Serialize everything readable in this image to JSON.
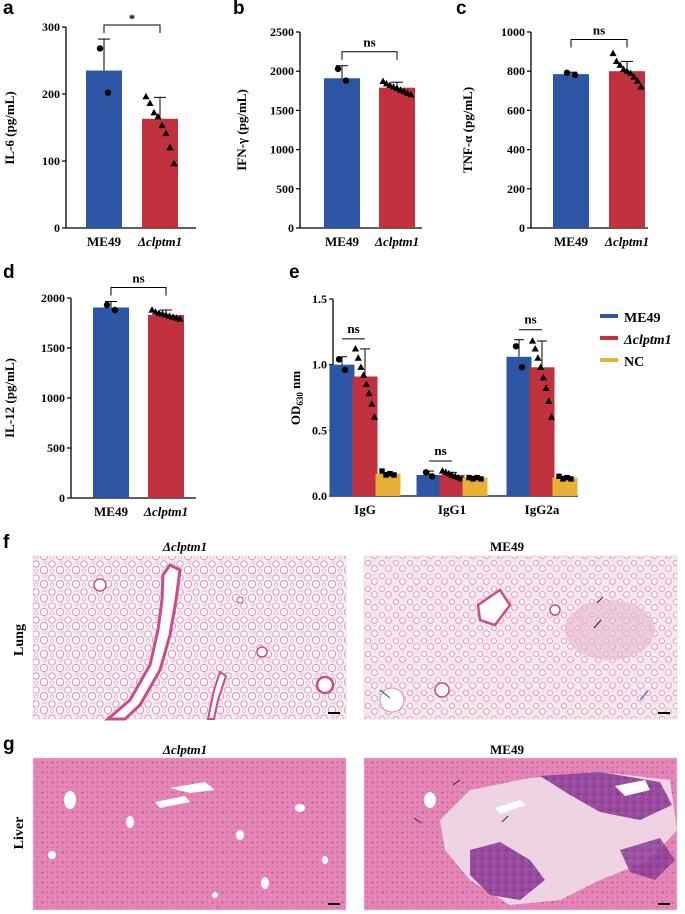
{
  "colors": {
    "me49": "#2c56a4",
    "clptm1": "#c0313d",
    "nc": "#eab035"
  },
  "chart_data": [
    {
      "id": "a",
      "type": "bar",
      "panel": "a",
      "ylabel": "IL-6 (pg/mL)",
      "ylim": [
        0,
        300
      ],
      "yticks": [
        0,
        100,
        200,
        300
      ],
      "categories": [
        "ME49",
        "Δclptm1"
      ],
      "values": [
        235,
        163
      ],
      "errors": [
        47,
        32
      ],
      "points": [
        [
          268,
          202
        ],
        [
          196,
          186,
          172,
          166,
          153,
          141,
          120,
          96
        ]
      ],
      "sig": "*"
    },
    {
      "id": "b",
      "type": "bar",
      "panel": "b",
      "ylabel": "IFN-γ (pg/mL)",
      "ylim": [
        0,
        2500
      ],
      "yticks": [
        0,
        500,
        1000,
        1500,
        2000,
        2500
      ],
      "categories": [
        "ME49",
        "Δclptm1"
      ],
      "values": [
        1910,
        1790
      ],
      "errors": [
        160,
        70
      ],
      "points": [
        [
          2030,
          1880
        ],
        [
          1870,
          1840,
          1820,
          1800,
          1780,
          1760,
          1740,
          1720,
          1700
        ]
      ],
      "sig": "ns"
    },
    {
      "id": "c",
      "type": "bar",
      "panel": "c",
      "ylabel": "TNF-α (pg/mL)",
      "ylim": [
        0,
        1000
      ],
      "yticks": [
        0,
        200,
        400,
        600,
        800,
        1000
      ],
      "categories": [
        "ME49",
        "Δclptm1"
      ],
      "values": [
        785,
        800
      ],
      "errors": [
        10,
        50
      ],
      "points": [
        [
          792,
          781
        ],
        [
          890,
          850,
          830,
          810,
          800,
          790,
          770,
          750,
          720
        ]
      ],
      "sig": "ns"
    },
    {
      "id": "d",
      "type": "bar",
      "panel": "d",
      "ylabel": "IL-12 (pg/mL)",
      "ylim": [
        0,
        2000
      ],
      "yticks": [
        0,
        500,
        1000,
        1500,
        2000
      ],
      "categories": [
        "ME49",
        "Δclptm1"
      ],
      "values": [
        1905,
        1830
      ],
      "errors": [
        60,
        50
      ],
      "points": [
        [
          1930,
          1880
        ],
        [
          1880,
          1860,
          1850,
          1840,
          1830,
          1820,
          1810,
          1800,
          1790
        ]
      ],
      "sig": "ns"
    },
    {
      "id": "e",
      "type": "bar",
      "panel": "e",
      "ylabel": "OD630 nm",
      "ylabel_main": "OD",
      "ylabel_sub": "630",
      "ylabel_unit": " nm",
      "ylim": [
        0,
        1.5
      ],
      "yticks": [
        "0.0",
        "0.5",
        "1.0",
        "1.5"
      ],
      "categories": [
        "IgG",
        "IgG1",
        "IgG2a"
      ],
      "legend": [
        "ME49",
        "Δclptm1",
        "NC"
      ],
      "series": [
        {
          "name": "ME49",
          "values": [
            1.0,
            0.16,
            1.06
          ],
          "errors": [
            0.06,
            0.03,
            0.13
          ],
          "points": [
            [
              1.04,
              0.96
            ],
            [
              0.18,
              0.15
            ],
            [
              1.14,
              0.98
            ]
          ]
        },
        {
          "name": "Δclptm1",
          "values": [
            0.91,
            0.16,
            0.98
          ],
          "errors": [
            0.21,
            0.02,
            0.2
          ],
          "points": [
            [
              1.12,
              1.05,
              0.98,
              0.92,
              0.85,
              0.78,
              0.7,
              0.6
            ],
            [
              0.19,
              0.18,
              0.17,
              0.16,
              0.15,
              0.14,
              0.13
            ],
            [
              1.18,
              1.12,
              1.05,
              0.98,
              0.9,
              0.82,
              0.72,
              0.6
            ]
          ]
        },
        {
          "name": "NC",
          "values": [
            0.17,
            0.14,
            0.14
          ],
          "errors": [
            0.01,
            0.01,
            0.01
          ],
          "points": [
            [
              0.19,
              0.16,
              0.17,
              0.16
            ],
            [
              0.14,
              0.13,
              0.14,
              0.13
            ],
            [
              0.15,
              0.13,
              0.14,
              0.13
            ]
          ]
        }
      ],
      "sig": [
        "ns",
        "ns",
        "ns"
      ]
    }
  ],
  "histology": {
    "f_label": "f",
    "g_label": "g",
    "rows": [
      "Lung",
      "Liver"
    ],
    "titles": [
      "Δclptm1",
      "ME49"
    ]
  }
}
